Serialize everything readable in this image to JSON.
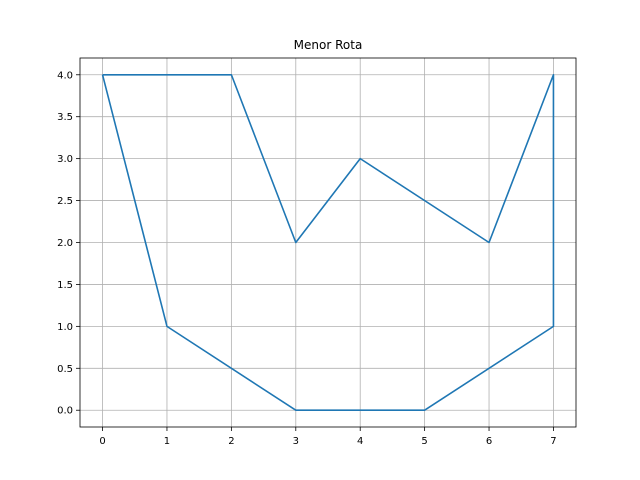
{
  "chart_data": {
    "type": "line",
    "title": "Menor Rota",
    "xlabel": "",
    "ylabel": "",
    "xlim": [
      -0.35,
      7.35
    ],
    "ylim": [
      -0.2,
      4.2
    ],
    "xticks": [
      0,
      1,
      2,
      3,
      4,
      5,
      6,
      7
    ],
    "xtick_labels": [
      "0",
      "1",
      "2",
      "3",
      "4",
      "5",
      "6",
      "7"
    ],
    "yticks": [
      0.0,
      0.5,
      1.0,
      1.5,
      2.0,
      2.5,
      3.0,
      3.5,
      4.0
    ],
    "ytick_labels": [
      "0.0",
      "0.5",
      "1.0",
      "1.5",
      "2.0",
      "2.5",
      "3.0",
      "3.5",
      "4.0"
    ],
    "grid": true,
    "series": [
      {
        "color": "#1f77b4",
        "x": [
          0,
          2,
          3,
          4,
          6,
          7,
          7,
          5,
          3,
          1,
          0
        ],
        "y": [
          4,
          4,
          2,
          3,
          2,
          4,
          1,
          0,
          0,
          1,
          4
        ]
      }
    ]
  }
}
